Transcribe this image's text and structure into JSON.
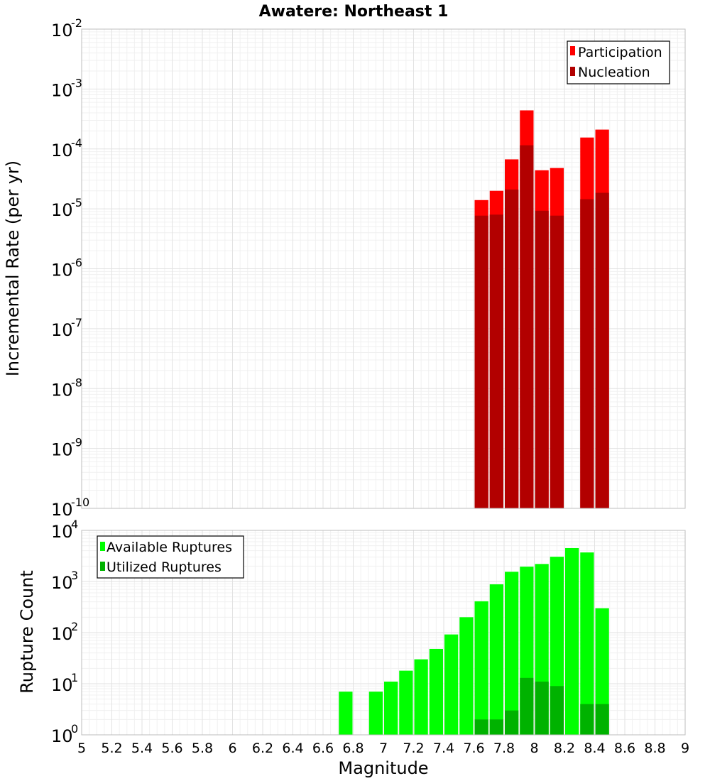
{
  "title": "Awatere: Northeast 1",
  "xlabel": "Magnitude",
  "colors": {
    "participation": "#ff0000",
    "nucleation": "#b20000",
    "available": "#00ff00",
    "utilized": "#00b200",
    "grid": "#e2e2e2",
    "frame": "#bdbdbd"
  },
  "chart_data": [
    {
      "type": "bar",
      "subplot": "top",
      "ylabel": "Incremental Rate (per yr)",
      "yscale": "log",
      "ylim": [
        1e-10,
        0.01
      ],
      "xlim": [
        5,
        9
      ],
      "bar_width": 0.1,
      "legend": {
        "placement": "top-right",
        "entries": [
          "Participation",
          "Nucleation"
        ]
      },
      "series": [
        {
          "name": "Participation",
          "x": [
            7.65,
            7.75,
            7.85,
            7.95,
            8.05,
            8.15,
            8.35,
            8.45
          ],
          "values": [
            1.4e-05,
            2e-05,
            6.7e-05,
            0.00044,
            4.4e-05,
            4.8e-05,
            0.000155,
            0.00021
          ]
        },
        {
          "name": "Nucleation",
          "x": [
            7.65,
            7.75,
            7.85,
            7.95,
            8.05,
            8.15,
            8.35,
            8.45
          ],
          "values": [
            7.7e-06,
            8e-06,
            2.1e-05,
            0.000115,
            9.3e-06,
            7.7e-06,
            1.45e-05,
            1.85e-05
          ]
        }
      ]
    },
    {
      "type": "bar",
      "subplot": "bottom",
      "ylabel": "Rupture Count",
      "yscale": "log",
      "ylim": [
        1,
        10000
      ],
      "xlim": [
        5,
        9
      ],
      "bar_width": 0.1,
      "legend": {
        "placement": "top-left",
        "entries": [
          "Available Ruptures",
          "Utilized Ruptures"
        ]
      },
      "series": [
        {
          "name": "Available Ruptures",
          "x": [
            6.75,
            6.95,
            7.05,
            7.15,
            7.25,
            7.35,
            7.45,
            7.55,
            7.65,
            7.75,
            7.85,
            7.95,
            8.05,
            8.15,
            8.25,
            8.35,
            8.45
          ],
          "values": [
            7,
            7,
            11,
            18,
            30,
            48,
            92,
            200,
            410,
            880,
            1550,
            1950,
            2200,
            3050,
            4500,
            3700,
            300
          ]
        },
        {
          "name": "Utilized Ruptures",
          "x": [
            7.65,
            7.75,
            7.85,
            7.95,
            8.05,
            8.15,
            8.35,
            8.45
          ],
          "values": [
            2,
            2,
            3,
            13,
            11,
            9,
            4,
            4
          ]
        }
      ]
    }
  ],
  "x_ticks": [
    "5",
    "5.2",
    "5.4",
    "5.6",
    "5.8",
    "6",
    "6.2",
    "6.4",
    "6.6",
    "6.8",
    "7",
    "7.2",
    "7.4",
    "7.6",
    "7.8",
    "8",
    "8.2",
    "8.4",
    "8.6",
    "8.8",
    "9"
  ],
  "y_ticks_top": [
    {
      "base": "10",
      "exp": "-10"
    },
    {
      "base": "10",
      "exp": "-9"
    },
    {
      "base": "10",
      "exp": "-8"
    },
    {
      "base": "10",
      "exp": "-7"
    },
    {
      "base": "10",
      "exp": "-6"
    },
    {
      "base": "10",
      "exp": "-5"
    },
    {
      "base": "10",
      "exp": "-4"
    },
    {
      "base": "10",
      "exp": "-3"
    },
    {
      "base": "10",
      "exp": "-2"
    }
  ],
  "y_ticks_bottom": [
    {
      "base": "10",
      "exp": "0"
    },
    {
      "base": "10",
      "exp": "1"
    },
    {
      "base": "10",
      "exp": "2"
    },
    {
      "base": "10",
      "exp": "3"
    },
    {
      "base": "10",
      "exp": "4"
    }
  ]
}
